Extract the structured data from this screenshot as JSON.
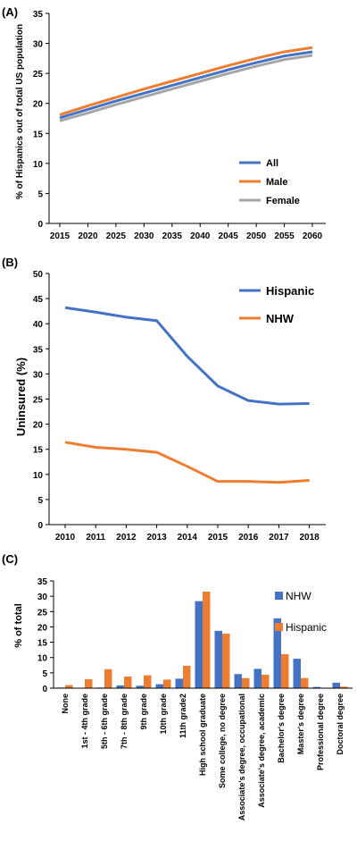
{
  "panels": [
    "(A)",
    "(B)",
    "(C)"
  ],
  "chart_data": [
    {
      "type": "line",
      "panel": "(A)",
      "ylabel": "% of Hispanics out of total US population",
      "xlabel": "",
      "ylim": [
        0,
        35
      ],
      "yticks": [
        0,
        5,
        10,
        15,
        20,
        25,
        30,
        35
      ],
      "x": [
        2015,
        2020,
        2025,
        2030,
        2035,
        2040,
        2045,
        2050,
        2055,
        2060
      ],
      "xlim": [
        2015,
        2060
      ],
      "legend_position": "right",
      "series": [
        {
          "name": "All",
          "color": "#4472C4",
          "values": [
            17.6,
            19.0,
            20.4,
            21.7,
            23.0,
            24.3,
            25.6,
            26.8,
            27.9,
            28.6
          ]
        },
        {
          "name": "Male",
          "color": "#ED7D31",
          "values": [
            18.1,
            19.6,
            21.0,
            22.4,
            23.7,
            25.0,
            26.3,
            27.5,
            28.6,
            29.3
          ]
        },
        {
          "name": "Female",
          "color": "#A5A5A5",
          "values": [
            17.1,
            18.4,
            19.8,
            21.1,
            22.4,
            23.7,
            25.0,
            26.2,
            27.3,
            28.0
          ]
        }
      ]
    },
    {
      "type": "line",
      "panel": "(B)",
      "ylabel": "Uninsured (%)",
      "xlabel": "",
      "ylim": [
        0,
        50
      ],
      "yticks": [
        0,
        5,
        10,
        15,
        20,
        25,
        30,
        35,
        40,
        45,
        50
      ],
      "x": [
        2010,
        2011,
        2012,
        2013,
        2014,
        2015,
        2016,
        2017,
        2018
      ],
      "legend_position": "top-right",
      "series": [
        {
          "name": "Hispanic",
          "color": "#4472C4",
          "values": [
            43.2,
            42.3,
            41.3,
            40.6,
            33.5,
            27.6,
            24.7,
            24.0,
            24.1
          ]
        },
        {
          "name": "NHW",
          "color": "#ED7D31",
          "values": [
            16.4,
            15.4,
            15.0,
            14.4,
            11.6,
            8.6,
            8.6,
            8.4,
            8.8
          ]
        }
      ]
    },
    {
      "type": "bar",
      "panel": "(C)",
      "ylabel": "% of total",
      "xlabel": "",
      "ylim": [
        0,
        35
      ],
      "yticks": [
        0,
        5,
        10,
        15,
        20,
        25,
        30,
        35
      ],
      "legend_position": "top-right",
      "categories": [
        "None",
        "1st - 4th grade",
        "5th - 6th grade",
        "7th - 8th grade",
        "9th grade",
        "10th grade",
        "11th grade2",
        "High school graduate",
        "Some college, no degree",
        "Associate's degree, occupational",
        "Associate's degree, academic",
        "Bachelor's degree",
        "Master's degree",
        "Professional degree",
        "Doctoral degree"
      ],
      "series": [
        {
          "name": "NHW",
          "color": "#4472C4",
          "values": [
            0.2,
            0.1,
            0.2,
            0.9,
            0.8,
            1.3,
            3.1,
            28.4,
            18.7,
            4.6,
            6.3,
            22.8,
            9.6,
            0.4,
            1.8
          ]
        },
        {
          "name": "Hispanic",
          "color": "#ED7D31",
          "values": [
            1.0,
            2.9,
            6.2,
            3.8,
            4.2,
            2.8,
            7.3,
            31.5,
            17.8,
            3.3,
            4.4,
            11.1,
            3.3,
            0.1,
            0.5
          ]
        }
      ]
    }
  ]
}
